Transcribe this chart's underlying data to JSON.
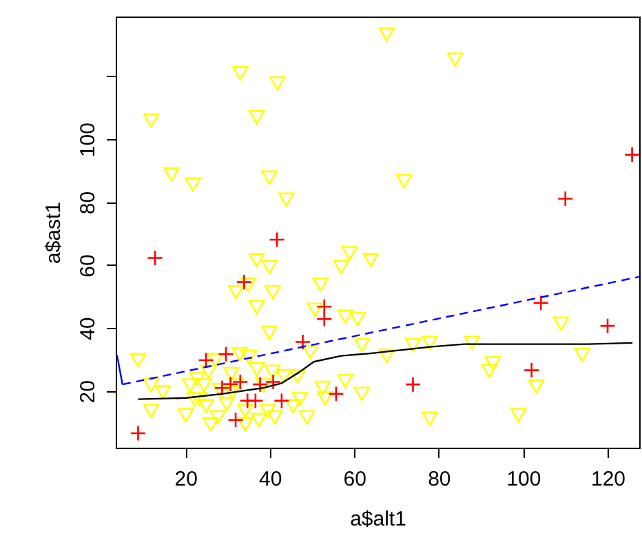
{
  "chart_data": {
    "type": "scatter",
    "xlabel": "a$alt1",
    "ylabel": "a$ast1",
    "xlim": [
      3.5,
      127.5
    ],
    "ylim": [
      2,
      139
    ],
    "xticks": [
      20,
      40,
      60,
      80,
      100,
      120
    ],
    "yticks": [
      20,
      40,
      60,
      80,
      100,
      {
        "value": 120,
        "label": null
      }
    ],
    "grid": false,
    "series": [
      {
        "type": "scatter",
        "marker": "triangle",
        "color": "#ffff00",
        "x": [
          33.0,
          41.8,
          11.9,
          36.9,
          16.7,
          21.8,
          39.9,
          43.9,
          67.7,
          83.9,
          71.8,
          36.9,
          39.9,
          58.9,
          56.9,
          63.9,
          52.0,
          34.9,
          32.0,
          40.7,
          36.9,
          50.7,
          57.9,
          60.8,
          39.9,
          61.8,
          49.6,
          8.8,
          11.9,
          14.7,
          11.9,
          20.1,
          21.1,
          22.8,
          25.5,
          27.1,
          32.9,
          35.0,
          23.3,
          24.9,
          26.0,
          27.7,
          29.8,
          31.1,
          34.2,
          34.2,
          37.4,
          39.5,
          41.2,
          36.9,
          40.6,
          43.3,
          46.6,
          47.1,
          45.5,
          48.8,
          52.5,
          53.1,
          57.9,
          61.8,
          28.2,
          24.4,
          22.2,
          32.0,
          38.5,
          30.9,
          67.7,
          73.9,
          77.9,
          87.9,
          92.8,
          92.0,
          103.1,
          98.9,
          77.9,
          109.0,
          114.0
        ],
        "values": [
          121.0,
          117.7,
          105.9,
          107.0,
          88.8,
          85.6,
          87.8,
          80.8,
          133.3,
          125.3,
          86.7,
          61.6,
          59.4,
          63.8,
          59.4,
          61.6,
          53.8,
          53.8,
          51.4,
          51.4,
          46.6,
          45.8,
          43.6,
          42.9,
          38.5,
          34.6,
          32.4,
          29.8,
          21.8,
          19.6,
          13.7,
          12.3,
          21.8,
          23.9,
          26.1,
          29.8,
          31.7,
          30.8,
          17.4,
          15.2,
          9.4,
          11.6,
          15.9,
          19.6,
          9.4,
          13.7,
          10.8,
          13.7,
          11.6,
          26.9,
          26.1,
          24.7,
          24.7,
          17.4,
          15.2,
          11.6,
          21.0,
          17.7,
          23.2,
          19.1,
          20.3,
          21.8,
          17.4,
          21.8,
          21.8,
          25.4,
          31.2,
          34.6,
          35.3,
          35.3,
          28.8,
          26.4,
          21.4,
          12.3,
          11.2,
          41.4,
          31.5
        ]
      },
      {
        "type": "scatter",
        "marker": "cross",
        "color": "#ff0000",
        "x": [
          41.7,
          12.8,
          125.8,
          110.0,
          33.9,
          52.9,
          52.9,
          47.8,
          29.6,
          24.9,
          8.8,
          31.9,
          55.7,
          42.8,
          36.6,
          34.7,
          28.7,
          30.7,
          33.0,
          37.7,
          40.8,
          73.9,
          104.2,
          102.0,
          120.0
        ],
        "values": [
          68.1,
          62.3,
          95.1,
          81.1,
          54.6,
          46.8,
          42.9,
          35.6,
          31.7,
          29.8,
          6.6,
          10.8,
          19.1,
          16.9,
          16.9,
          16.9,
          21.0,
          22.2,
          22.9,
          22.1,
          22.9,
          22.1,
          48.0,
          26.6,
          40.7
        ]
      },
      {
        "type": "line",
        "marker": "none",
        "line_style": "solid",
        "color": "#000000",
        "x": [
          8.8,
          20.1,
          28.7,
          38.5,
          42.8,
          47.1,
          50.4,
          56.9,
          63.4,
          78.4,
          86.1,
          107.7,
          115.3,
          125.9
        ],
        "values": [
          17.4,
          17.8,
          19.1,
          21.0,
          22.5,
          26.1,
          29.3,
          31.2,
          31.9,
          34.1,
          34.9,
          34.9,
          34.9,
          35.3
        ]
      },
      {
        "type": "line",
        "marker": "none",
        "line_style": "dashed",
        "color": "#0000ff",
        "x": [
          5.1,
          127.5
        ],
        "values": [
          22.1,
          56.3
        ]
      },
      {
        "type": "line",
        "marker": "none",
        "line_style": "solid",
        "color": "#0000ff",
        "x": [
          3.8,
          5.1
        ],
        "values": [
          31.4,
          22.1
        ]
      }
    ]
  }
}
